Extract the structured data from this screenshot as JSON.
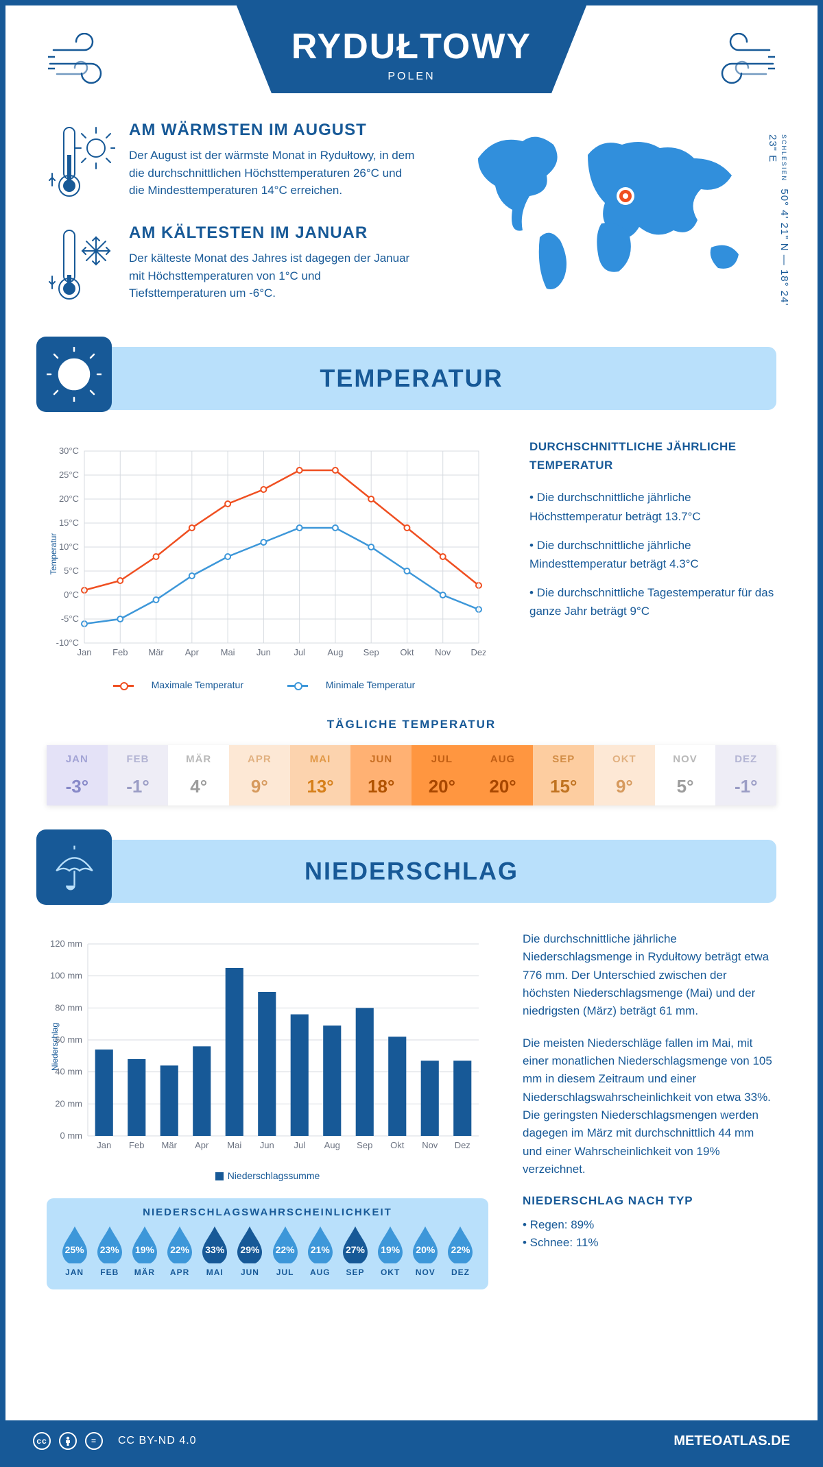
{
  "header": {
    "city": "RYDUŁTOWY",
    "country": "POLEN"
  },
  "coords": {
    "text": "50° 4' 21\" N — 18° 24' 23\" E",
    "region": "SCHLESIEN"
  },
  "warmest": {
    "title": "AM WÄRMSTEN IM AUGUST",
    "text": "Der August ist der wärmste Monat in Rydułtowy, in dem die durchschnittlichen Höchsttemperaturen 26°C und die Mindesttemperaturen 14°C erreichen."
  },
  "coldest": {
    "title": "AM KÄLTESTEN IM JANUAR",
    "text": "Der kälteste Monat des Jahres ist dagegen der Januar mit Höchsttemperaturen von 1°C und Tiefsttemperaturen um -6°C."
  },
  "temp_section": {
    "title": "TEMPERATUR"
  },
  "temp_chart": {
    "type": "line",
    "months": [
      "Jan",
      "Feb",
      "Mär",
      "Apr",
      "Mai",
      "Jun",
      "Jul",
      "Aug",
      "Sep",
      "Okt",
      "Nov",
      "Dez"
    ],
    "max": [
      1,
      3,
      8,
      14,
      19,
      22,
      26,
      26,
      20,
      14,
      8,
      2
    ],
    "min": [
      -6,
      -5,
      -1,
      4,
      8,
      11,
      14,
      14,
      10,
      5,
      0,
      -3
    ],
    "max_color": "#ef4f21",
    "min_color": "#3d97d9",
    "ylim": [
      -10,
      30
    ],
    "ytick_step": 5,
    "ytick_suffix": "°C",
    "grid_color": "#d7dbe0",
    "axis_label_y": "Temperatur",
    "legend_max": "Maximale Temperatur",
    "legend_min": "Minimale Temperatur",
    "line_width": 2.5,
    "marker_radius": 4
  },
  "temp_side": {
    "title": "DURCHSCHNITTLICHE JÄHRLICHE TEMPERATUR",
    "b1": "• Die durchschnittliche jährliche Höchsttemperatur beträgt 13.7°C",
    "b2": "• Die durchschnittliche jährliche Mindesttemperatur beträgt 4.3°C",
    "b3": "• Die durchschnittliche Tagestemperatur für das ganze Jahr beträgt 9°C"
  },
  "daily": {
    "title": "TÄGLICHE TEMPERATUR",
    "months": [
      "JAN",
      "FEB",
      "MÄR",
      "APR",
      "MAI",
      "JUN",
      "JUL",
      "AUG",
      "SEP",
      "OKT",
      "NOV",
      "DEZ"
    ],
    "values": [
      "-3°",
      "-1°",
      "4°",
      "9°",
      "13°",
      "18°",
      "20°",
      "20°",
      "15°",
      "9°",
      "5°",
      "-1°"
    ],
    "bg": [
      "#e4e2f7",
      "#eeedf6",
      "#ffffff",
      "#fde8d5",
      "#fcd3ae",
      "#ffb173",
      "#ff9640",
      "#ff9640",
      "#fdcda0",
      "#fde8d5",
      "#ffffff",
      "#eeedf6"
    ],
    "fg": [
      "#8789c8",
      "#9b9dc5",
      "#9c9c9c",
      "#d69a5e",
      "#d6801b",
      "#b15300",
      "#a84700",
      "#a84700",
      "#c07321",
      "#d69a5e",
      "#9c9c9c",
      "#9b9dc5"
    ]
  },
  "precip_section": {
    "title": "NIEDERSCHLAG"
  },
  "precip_chart": {
    "type": "bar",
    "months": [
      "Jan",
      "Feb",
      "Mär",
      "Apr",
      "Mai",
      "Jun",
      "Jul",
      "Aug",
      "Sep",
      "Okt",
      "Nov",
      "Dez"
    ],
    "values": [
      54,
      48,
      44,
      56,
      105,
      90,
      76,
      69,
      80,
      62,
      47,
      47
    ],
    "bar_color": "#175997",
    "ylim": [
      0,
      120
    ],
    "ytick_step": 20,
    "ytick_suffix": " mm",
    "grid_color": "#d7dbe0",
    "axis_label_y": "Niederschlag",
    "legend": "Niederschlagssumme",
    "bar_width_ratio": 0.55
  },
  "precip_text": {
    "p1": "Die durchschnittliche jährliche Niederschlagsmenge in Rydułtowy beträgt etwa 776 mm. Der Unterschied zwischen der höchsten Niederschlagsmenge (Mai) und der niedrigsten (März) beträgt 61 mm.",
    "p2": "Die meisten Niederschläge fallen im Mai, mit einer monatlichen Niederschlagsmenge von 105 mm in diesem Zeitraum und einer Niederschlagswahrscheinlichkeit von etwa 33%. Die geringsten Niederschlagsmengen werden dagegen im März mit durchschnittlich 44 mm und einer Wahrscheinlichkeit von 19% verzeichnet.",
    "type_title": "NIEDERSCHLAG NACH TYP",
    "t1": "• Regen: 89%",
    "t2": "• Schnee: 11%"
  },
  "prob": {
    "title": "NIEDERSCHLAGSWAHRSCHEINLICHKEIT",
    "months": [
      "JAN",
      "FEB",
      "MÄR",
      "APR",
      "MAI",
      "JUN",
      "JUL",
      "AUG",
      "SEP",
      "OKT",
      "NOV",
      "DEZ"
    ],
    "values": [
      25,
      23,
      19,
      22,
      33,
      29,
      22,
      21,
      27,
      19,
      20,
      22
    ],
    "drop_color_light": "#3d97d9",
    "drop_color_dark": "#175997",
    "dark_threshold": 27
  },
  "footer": {
    "license": "CC BY-ND 4.0",
    "brand": "METEOATLAS.DE"
  }
}
